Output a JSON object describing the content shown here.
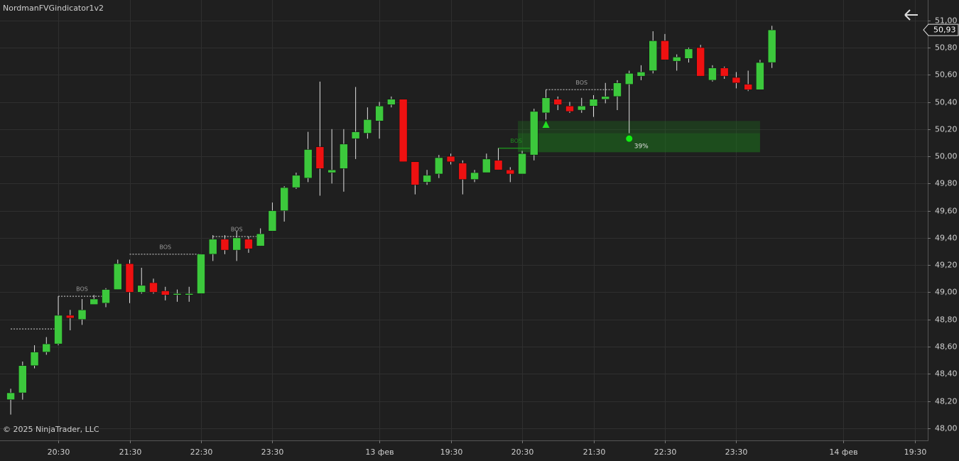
{
  "chart_data": {
    "type": "candlestick",
    "title": "NordmanFVGindicator1v2",
    "copyright": "© 2025 NinjaTrader, LLC",
    "up_color": "#3cc83c",
    "down_color": "#ee1111",
    "open": [
      48.21,
      48.26,
      48.46,
      48.56,
      48.62,
      48.83,
      48.8,
      48.91,
      48.92,
      49.02,
      49.21,
      49.0,
      49.07,
      49.01,
      48.98,
      48.98,
      48.99,
      49.28,
      49.39,
      49.31,
      49.39,
      49.34,
      49.45,
      49.6,
      49.77,
      49.84,
      50.07,
      49.88,
      49.91,
      50.13,
      50.17,
      50.26,
      50.38,
      50.42,
      49.96,
      49.81,
      49.87,
      50.0,
      49.95,
      49.83,
      49.88,
      49.97,
      49.9,
      49.87,
      50.01,
      50.32,
      50.42,
      50.37,
      50.34,
      50.37,
      50.42,
      50.44,
      50.53,
      50.59,
      50.63,
      50.85,
      50.7,
      50.72,
      50.8,
      50.56,
      50.65,
      50.58,
      50.53,
      50.49,
      50.69
    ],
    "high": [
      48.29,
      48.49,
      48.61,
      48.67,
      48.97,
      48.87,
      48.95,
      48.98,
      49.03,
      49.24,
      49.24,
      49.18,
      49.1,
      49.04,
      49.02,
      49.04,
      49.28,
      49.42,
      49.42,
      49.45,
      49.41,
      49.47,
      49.66,
      49.78,
      49.88,
      50.18,
      50.55,
      50.2,
      50.2,
      50.51,
      50.36,
      50.4,
      50.44,
      50.42,
      49.96,
      49.9,
      50.01,
      50.02,
      49.97,
      49.9,
      50.02,
      50.06,
      49.92,
      50.04,
      50.35,
      50.49,
      50.44,
      50.4,
      50.43,
      50.45,
      50.54,
      50.56,
      50.63,
      50.67,
      50.92,
      50.9,
      50.75,
      50.8,
      50.82,
      50.67,
      50.66,
      50.62,
      50.63,
      50.71,
      50.96
    ],
    "low": [
      48.1,
      48.21,
      48.44,
      48.54,
      48.61,
      48.72,
      48.76,
      48.91,
      48.89,
      49.02,
      48.92,
      48.99,
      48.99,
      48.94,
      48.93,
      48.93,
      48.99,
      49.23,
      49.28,
      49.23,
      49.29,
      49.34,
      49.45,
      49.52,
      49.76,
      49.81,
      49.71,
      49.8,
      49.74,
      49.98,
      50.13,
      50.13,
      50.36,
      49.96,
      49.72,
      49.79,
      49.84,
      49.94,
      49.72,
      49.81,
      49.88,
      49.9,
      49.81,
      49.87,
      49.97,
      50.27,
      50.34,
      50.32,
      50.32,
      50.29,
      50.39,
      50.34,
      50.17,
      50.56,
      50.61,
      50.71,
      50.63,
      50.69,
      50.59,
      50.55,
      50.57,
      50.5,
      50.48,
      50.49,
      50.65
    ],
    "close": [
      48.26,
      48.46,
      48.56,
      48.62,
      48.83,
      48.81,
      48.87,
      48.95,
      49.02,
      49.21,
      49.0,
      49.05,
      49.0,
      48.98,
      48.99,
      48.99,
      49.28,
      49.39,
      49.31,
      49.4,
      49.32,
      49.43,
      49.6,
      49.77,
      49.86,
      50.05,
      49.91,
      49.9,
      50.09,
      50.18,
      50.27,
      50.37,
      50.42,
      49.96,
      49.79,
      49.86,
      49.99,
      49.96,
      49.83,
      49.88,
      49.98,
      49.9,
      49.87,
      50.02,
      50.33,
      50.43,
      50.38,
      50.33,
      50.37,
      50.42,
      50.44,
      50.54,
      50.61,
      50.62,
      50.85,
      50.71,
      50.73,
      50.79,
      50.59,
      50.65,
      50.59,
      50.54,
      50.49,
      50.69,
      50.93
    ],
    "last_price": {
      "value": 50.93,
      "label": "50,93"
    },
    "xlim": [
      -0.9,
      77.1
    ],
    "xticks": [
      {
        "value": 4,
        "label": "20:30"
      },
      {
        "value": 10,
        "label": "21:30"
      },
      {
        "value": 16,
        "label": "22:30"
      },
      {
        "value": 22,
        "label": "23:30"
      },
      {
        "value": 31,
        "label": "13 фев"
      },
      {
        "value": 37,
        "label": "19:30"
      },
      {
        "value": 43,
        "label": "20:30"
      },
      {
        "value": 49,
        "label": "21:30"
      },
      {
        "value": 55,
        "label": "22:30"
      },
      {
        "value": 61,
        "label": "23:30"
      },
      {
        "value": 70,
        "label": "14 фев"
      },
      {
        "value": 76,
        "label": "19:30"
      }
    ],
    "ylim": [
      47.91,
      51.15
    ],
    "yticks": [
      {
        "value": 48,
        "label": "48,00"
      },
      {
        "value": 48.2,
        "label": "48,20"
      },
      {
        "value": 48.4,
        "label": "48,40"
      },
      {
        "value": 48.6,
        "label": "48,60"
      },
      {
        "value": 48.8,
        "label": "48,80"
      },
      {
        "value": 49,
        "label": "49,00"
      },
      {
        "value": 49.2,
        "label": "49,20"
      },
      {
        "value": 49.4,
        "label": "49,40"
      },
      {
        "value": 49.6,
        "label": "49,60"
      },
      {
        "value": 49.8,
        "label": "49,80"
      },
      {
        "value": 50,
        "label": "50,00"
      },
      {
        "value": 50.2,
        "label": "50,20"
      },
      {
        "value": 50.4,
        "label": "50,40"
      },
      {
        "value": 50.6,
        "label": "50,60"
      },
      {
        "value": 50.8,
        "label": "50,80"
      },
      {
        "value": 51,
        "label": "51,00"
      }
    ],
    "grid": true,
    "bos": [
      {
        "level": 48.73,
        "from": 0,
        "to": 4,
        "color": "#9a9a9a"
      },
      {
        "label": "BOS",
        "level": 48.97,
        "from": 4,
        "to": 8,
        "color": "#9a9a9a"
      },
      {
        "label": "BOS",
        "level": 49.28,
        "from": 10,
        "to": 16,
        "color": "#9a9a9a"
      },
      {
        "label": "BOS",
        "level": 49.41,
        "from": 17,
        "to": 21,
        "color": "#9a9a9a"
      },
      {
        "label": "BOS",
        "level": 50.06,
        "from": 41,
        "to": 44,
        "color": "#1e8c1e"
      },
      {
        "label": "BOS",
        "level": 50.49,
        "from": 45,
        "to": 51,
        "color": "#9a9a9a"
      }
    ],
    "zones": [
      {
        "top": 50.26,
        "bottom": 50.03,
        "from": 43,
        "to": 63,
        "color": "#1f7a1f"
      },
      {
        "top": 50.17,
        "bottom": 50.03,
        "from": 43,
        "to": 63,
        "color": "#1f7a1f"
      }
    ],
    "signal": {
      "x": 45,
      "value": 50.23,
      "color": "#22dd22"
    },
    "fill_point": {
      "x": 52,
      "value": 50.13,
      "label": "39%",
      "color": "#11ee11"
    }
  }
}
